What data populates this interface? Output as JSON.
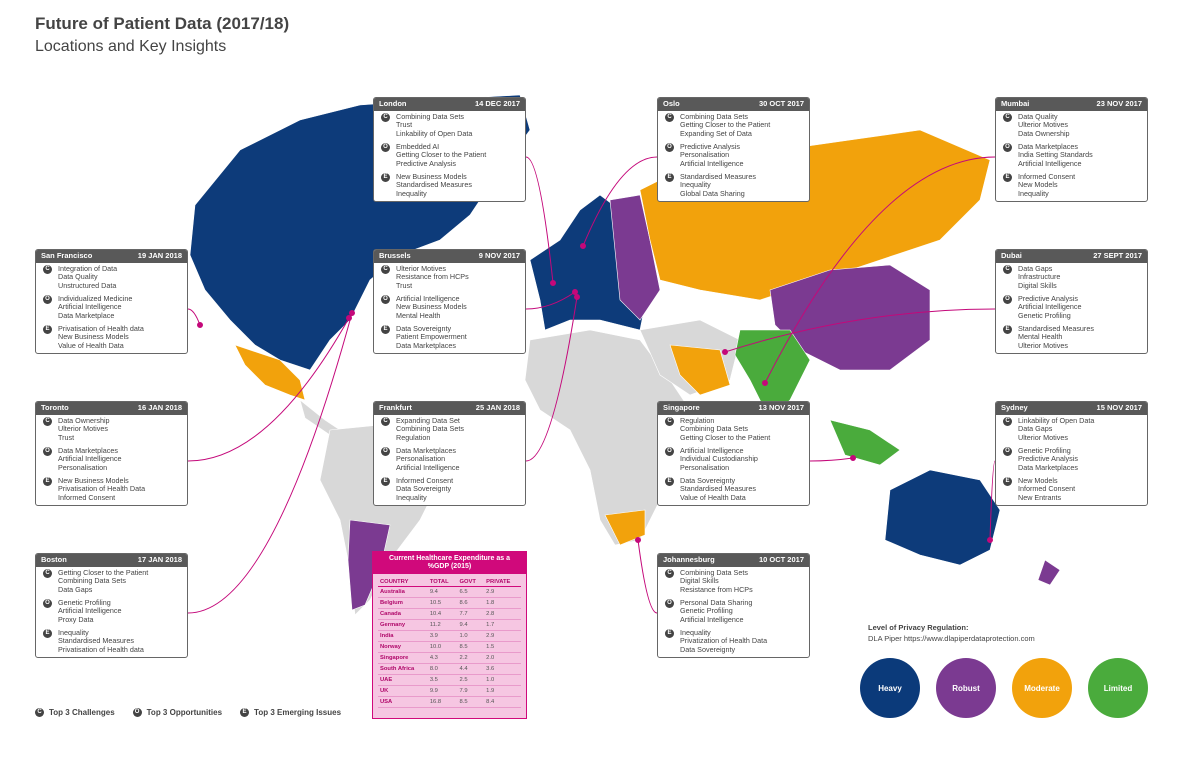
{
  "header": {
    "title": "Future of Patient Data (2017/18)",
    "subtitle": "Locations and Key Insights"
  },
  "cards": [
    {
      "city": "London",
      "date": "14 DEC 2017",
      "groups": [
        {
          "icon": "C",
          "items": [
            "Combining Data Sets",
            "Trust",
            "Linkability of Open Data"
          ]
        },
        {
          "icon": "O",
          "items": [
            "Embedded AI",
            "Getting Closer to the Patient",
            "Predictive Analysis"
          ]
        },
        {
          "icon": "E",
          "items": [
            "New Business Models",
            "Standardised Measures",
            "Inequality"
          ]
        }
      ]
    },
    {
      "city": "Oslo",
      "date": "30 OCT 2017",
      "groups": [
        {
          "icon": "C",
          "items": [
            "Combining Data Sets",
            "Getting Closer to the Patient",
            "Expanding Set of Data"
          ]
        },
        {
          "icon": "O",
          "items": [
            "Predictive Analysis",
            "Personalisation",
            "Artificial Intelligence"
          ]
        },
        {
          "icon": "E",
          "items": [
            "Standardised Measures",
            "Inequality",
            "Global Data Sharing"
          ]
        }
      ]
    },
    {
      "city": "Mumbai",
      "date": "23 NOV 2017",
      "groups": [
        {
          "icon": "C",
          "items": [
            "Data Quality",
            "Ulterior Motives",
            "Data Ownership"
          ]
        },
        {
          "icon": "O",
          "items": [
            "Data Marketplaces",
            "India Setting Standards",
            "Artificial Intelligence"
          ]
        },
        {
          "icon": "E",
          "items": [
            "Informed Consent",
            "New Models",
            "Inequality"
          ]
        }
      ]
    },
    {
      "city": "San Francisco",
      "date": "19 JAN 2018",
      "groups": [
        {
          "icon": "C",
          "items": [
            "Integration of Data",
            "Data Quality",
            "Unstructured Data"
          ]
        },
        {
          "icon": "O",
          "items": [
            "Individualized Medicine",
            "Artificial Intelligence",
            "Data Marketplace"
          ]
        },
        {
          "icon": "E",
          "items": [
            "Privatisation of Health data",
            "New Business Models",
            "Value of Health Data"
          ]
        }
      ]
    },
    {
      "city": "Brussels",
      "date": "9 NOV 2017",
      "groups": [
        {
          "icon": "C",
          "items": [
            "Ulterior Motives",
            "Resistance from HCPs",
            "Trust"
          ]
        },
        {
          "icon": "O",
          "items": [
            "Artificial Intelligence",
            "New Business Models",
            "Mental Health"
          ]
        },
        {
          "icon": "E",
          "items": [
            "Data Sovereignty",
            "Patient Empowerment",
            "Data Marketplaces"
          ]
        }
      ]
    },
    {
      "city": "Dubai",
      "date": "27 SEPT 2017",
      "groups": [
        {
          "icon": "C",
          "items": [
            "Data Gaps",
            "Infrastructure",
            "Digital Skills"
          ]
        },
        {
          "icon": "O",
          "items": [
            "Predictive Analysis",
            "Artificial Intelligence",
            "Genetic Profiling"
          ]
        },
        {
          "icon": "E",
          "items": [
            "Standardised Measures",
            "Mental Health",
            "Ulterior Motives"
          ]
        }
      ]
    },
    {
      "city": "Toronto",
      "date": "16 JAN 2018",
      "groups": [
        {
          "icon": "C",
          "items": [
            "Data Ownership",
            "Ulterior Motives",
            "Trust"
          ]
        },
        {
          "icon": "O",
          "items": [
            "Data Marketplaces",
            "Artificial Intelligence",
            "Personalisation"
          ]
        },
        {
          "icon": "E",
          "items": [
            "New Business Models",
            "Privatisation of Health Data",
            "Informed Consent"
          ]
        }
      ]
    },
    {
      "city": "Frankfurt",
      "date": "25 JAN 2018",
      "groups": [
        {
          "icon": "C",
          "items": [
            "Expanding Data Set",
            "Combining Data Sets",
            "Regulation"
          ]
        },
        {
          "icon": "O",
          "items": [
            "Data Marketplaces",
            "Personalisation",
            "Artificial Intelligence"
          ]
        },
        {
          "icon": "E",
          "items": [
            "Informed Consent",
            "Data Sovereignty",
            "Inequality"
          ]
        }
      ]
    },
    {
      "city": "Singapore",
      "date": "13 NOV 2017",
      "groups": [
        {
          "icon": "C",
          "items": [
            "Regulation",
            "Combining Data Sets",
            "Getting Closer to the Patient"
          ]
        },
        {
          "icon": "O",
          "items": [
            "Artificial Intelligence",
            "Individual Custodianship",
            "Personalisation"
          ]
        },
        {
          "icon": "E",
          "items": [
            "Data Sovereignty",
            "Standardised Measures",
            "Value of Health Data"
          ]
        }
      ]
    },
    {
      "city": "Sydney",
      "date": "15 NOV 2017",
      "groups": [
        {
          "icon": "C",
          "items": [
            "Linkability of Open Data",
            "Data Gaps",
            "Ulterior Motives"
          ]
        },
        {
          "icon": "O",
          "items": [
            "Genetic Profiling",
            "Predictive Analysis",
            "Data Marketplaces"
          ]
        },
        {
          "icon": "E",
          "items": [
            "New Models",
            "Informed Consent",
            "New Entrants"
          ]
        }
      ]
    },
    {
      "city": "Boston",
      "date": "17 JAN 2018",
      "groups": [
        {
          "icon": "C",
          "items": [
            "Getting Closer to the Patient",
            "Combining Data Sets",
            "Data Gaps"
          ]
        },
        {
          "icon": "O",
          "items": [
            "Genetic Profiling",
            "Artificial Intelligence",
            "Proxy Data"
          ]
        },
        {
          "icon": "E",
          "items": [
            "Inequality",
            "Standardised Measures",
            "Privatisation of Health data"
          ]
        }
      ]
    },
    {
      "city": "Johannesburg",
      "date": "10 OCT 2017",
      "groups": [
        {
          "icon": "C",
          "items": [
            "Combining Data Sets",
            "Digital Skills",
            "Resistance from HCPs"
          ]
        },
        {
          "icon": "O",
          "items": [
            "Personal Data Sharing",
            "Genetic Profiling",
            "Artificial Intelligence"
          ]
        },
        {
          "icon": "E",
          "items": [
            "Inequality",
            "Privatization of Health Data",
            "Data Sovereignty"
          ]
        }
      ]
    }
  ],
  "expenditure_table": {
    "title": "Current Healthcare Expenditure as a %GDP (2015)",
    "columns": [
      "COUNTRY",
      "TOTAL",
      "GOVT",
      "PRIVATE"
    ],
    "rows": [
      [
        "Australia",
        "9.4",
        "6.5",
        "2.9"
      ],
      [
        "Belgium",
        "10.5",
        "8.6",
        "1.8"
      ],
      [
        "Canada",
        "10.4",
        "7.7",
        "2.8"
      ],
      [
        "Germany",
        "11.2",
        "9.4",
        "1.7"
      ],
      [
        "India",
        "3.9",
        "1.0",
        "2.9"
      ],
      [
        "Norway",
        "10.0",
        "8.5",
        "1.5"
      ],
      [
        "Singapore",
        "4.3",
        "2.2",
        "2.0"
      ],
      [
        "South Africa",
        "8.0",
        "4.4",
        "3.6"
      ],
      [
        "UAE",
        "3.5",
        "2.5",
        "1.0"
      ],
      [
        "UK",
        "9.9",
        "7.9",
        "1.9"
      ],
      [
        "USA",
        "16.8",
        "8.5",
        "8.4"
      ]
    ]
  },
  "legend": {
    "items": [
      {
        "icon": "C",
        "label": "Top 3 Challenges"
      },
      {
        "icon": "O",
        "label": "Top 3 Opportunities"
      },
      {
        "icon": "E",
        "label": "Top 3 Emerging Issues"
      }
    ]
  },
  "privacy": {
    "title": "Level of Privacy Regulation:",
    "source": "DLA Piper https://www.dlapiperdataprotection.com",
    "levels": [
      "Heavy",
      "Robust",
      "Moderate",
      "Limited"
    ]
  }
}
